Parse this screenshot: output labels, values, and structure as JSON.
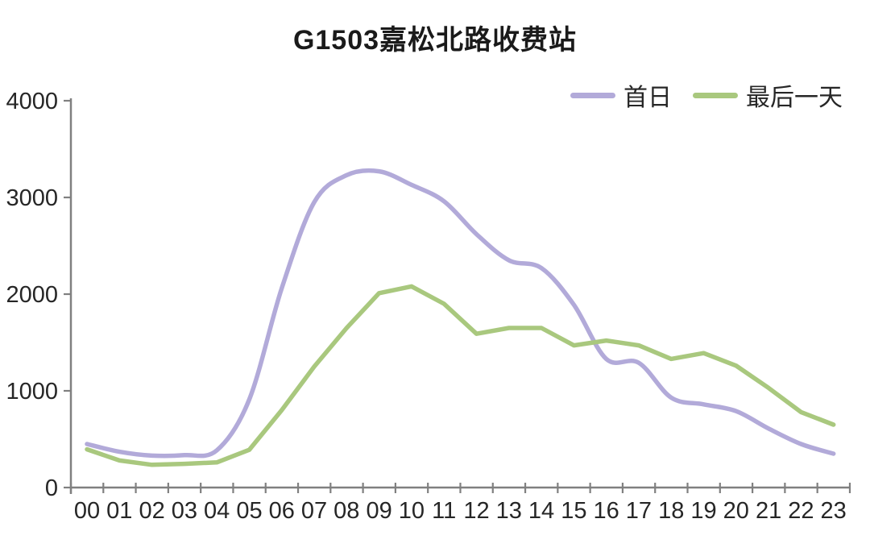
{
  "title": "G1503嘉松北路收费站",
  "legend": {
    "position": "top-right",
    "items": [
      {
        "label": "首日",
        "color": "#b2aad9"
      },
      {
        "label": "最后一天",
        "color": "#a9c87e"
      }
    ]
  },
  "chart_data": {
    "type": "line",
    "title": "G1503嘉松北路收费站",
    "x_categories": [
      "00",
      "01",
      "02",
      "03",
      "04",
      "05",
      "06",
      "07",
      "08",
      "09",
      "10",
      "11",
      "12",
      "13",
      "14",
      "15",
      "16",
      "17",
      "18",
      "19",
      "20",
      "21",
      "22",
      "23"
    ],
    "series": [
      {
        "name": "首日",
        "color": "#b2aad9",
        "smooth": true,
        "values": [
          450,
          370,
          330,
          335,
          385,
          910,
          2060,
          2950,
          3230,
          3270,
          3130,
          2960,
          2620,
          2350,
          2270,
          1890,
          1330,
          1290,
          930,
          860,
          790,
          610,
          450,
          350
        ]
      },
      {
        "name": "最后一天",
        "color": "#a9c87e",
        "smooth": false,
        "values": [
          395,
          280,
          235,
          245,
          260,
          390,
          800,
          1250,
          1650,
          2010,
          2080,
          1900,
          1590,
          1650,
          1650,
          1470,
          1520,
          1470,
          1330,
          1390,
          1260,
          1030,
          780,
          650
        ]
      }
    ],
    "xlabel": "",
    "ylabel": "",
    "ylim": [
      0,
      4000
    ],
    "yticks": [
      0,
      1000,
      2000,
      3000,
      4000
    ],
    "grid": false,
    "legend_position": "top-right",
    "axis_color": "#808080",
    "tick_label_color": "#262626",
    "line_width": 5.5
  }
}
